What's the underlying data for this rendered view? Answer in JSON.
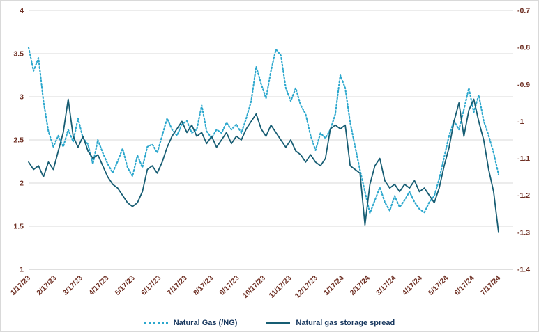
{
  "chart_data": {
    "type": "line",
    "title": "",
    "grid": true,
    "legend_position": "bottom",
    "background": "#ffffff",
    "gridline_color": "#d9d9d9",
    "axis_line_color": "#bfbfbf",
    "axis_label_color": "#6e2f23",
    "legend_text_color": "#17375e",
    "x_labels": [
      "1/17/23",
      "2/17/23",
      "3/17/23",
      "4/17/23",
      "5/17/23",
      "6/17/23",
      "7/17/23",
      "8/17/23",
      "9/17/23",
      "10/17/23",
      "11/17/23",
      "12/17/23",
      "1/17/24",
      "2/17/24",
      "3/17/24",
      "4/17/24",
      "5/17/24",
      "6/17/24",
      "7/17/24"
    ],
    "left_axis": {
      "min": 1,
      "max": 4,
      "ticks": [
        "4",
        "3.5",
        "3",
        "2.5",
        "2",
        "1.5",
        "1"
      ]
    },
    "right_axis": {
      "min": -1.4,
      "max": -0.7,
      "ticks": [
        "-0.7",
        "-0.8",
        "-0.9",
        "-1",
        "-1.1",
        "-1.2",
        "-1.3",
        "-1.4"
      ]
    },
    "series": [
      {
        "name": "Natural Gas (/NG)",
        "axis": "left",
        "style": "dotted",
        "color": "#2ba7cd",
        "values": [
          3.57,
          3.3,
          3.45,
          2.95,
          2.6,
          2.42,
          2.55,
          2.42,
          2.62,
          2.48,
          2.75,
          2.52,
          2.45,
          2.22,
          2.5,
          2.35,
          2.22,
          2.12,
          2.25,
          2.4,
          2.18,
          2.08,
          2.32,
          2.18,
          2.42,
          2.45,
          2.35,
          2.55,
          2.75,
          2.62,
          2.55,
          2.68,
          2.72,
          2.58,
          2.62,
          2.9,
          2.6,
          2.52,
          2.62,
          2.58,
          2.7,
          2.62,
          2.68,
          2.58,
          2.75,
          2.95,
          3.35,
          3.15,
          2.98,
          3.3,
          3.55,
          3.48,
          3.1,
          2.95,
          3.1,
          2.9,
          2.8,
          2.55,
          2.38,
          2.58,
          2.52,
          2.62,
          2.8,
          3.25,
          3.1,
          2.7,
          2.42,
          2.15,
          1.9,
          1.65,
          1.8,
          1.95,
          1.78,
          1.68,
          1.85,
          1.72,
          1.8,
          1.9,
          1.78,
          1.7,
          1.66,
          1.78,
          1.85,
          2.05,
          2.3,
          2.55,
          2.72,
          2.62,
          2.85,
          3.1,
          2.82,
          3.02,
          2.72,
          2.55,
          2.35,
          2.1
        ]
      },
      {
        "name": "Natural gas storage spread",
        "axis": "right",
        "style": "solid",
        "color": "#175d73",
        "values": [
          -1.11,
          -1.13,
          -1.12,
          -1.15,
          -1.11,
          -1.13,
          -1.08,
          -1.03,
          -0.94,
          -1.04,
          -1.07,
          -1.04,
          -1.08,
          -1.1,
          -1.09,
          -1.12,
          -1.15,
          -1.17,
          -1.18,
          -1.2,
          -1.22,
          -1.23,
          -1.22,
          -1.19,
          -1.13,
          -1.12,
          -1.14,
          -1.11,
          -1.07,
          -1.04,
          -1.02,
          -1.0,
          -1.03,
          -1.01,
          -1.04,
          -1.03,
          -1.06,
          -1.04,
          -1.07,
          -1.05,
          -1.03,
          -1.06,
          -1.04,
          -1.05,
          -1.02,
          -1.0,
          -0.98,
          -1.02,
          -1.04,
          -1.01,
          -1.03,
          -1.05,
          -1.07,
          -1.05,
          -1.08,
          -1.09,
          -1.11,
          -1.09,
          -1.11,
          -1.12,
          -1.1,
          -1.02,
          -1.01,
          -1.02,
          -1.01,
          -1.12,
          -1.13,
          -1.14,
          -1.28,
          -1.17,
          -1.12,
          -1.1,
          -1.16,
          -1.18,
          -1.17,
          -1.19,
          -1.17,
          -1.18,
          -1.16,
          -1.19,
          -1.18,
          -1.2,
          -1.22,
          -1.18,
          -1.12,
          -1.07,
          -1.0,
          -0.95,
          -1.04,
          -0.97,
          -0.94,
          -1.0,
          -1.05,
          -1.13,
          -1.19,
          -1.3
        ]
      }
    ]
  }
}
